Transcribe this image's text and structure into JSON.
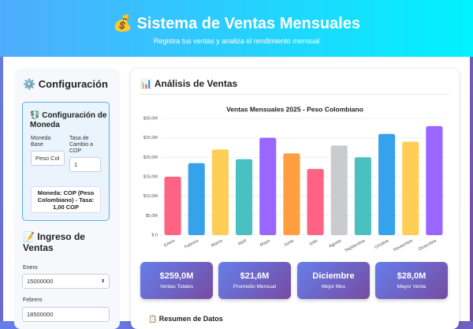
{
  "header": {
    "title": "💰 Sistema de Ventas Mensuales",
    "subtitle": "Registra tus ventas y analiza el rendimiento mensual"
  },
  "sidebar": {
    "config_title": "⚙️ Configuración",
    "currency": {
      "title": "💱 Configuración de Moneda",
      "base_label": "Moneda Base",
      "base_value": "Peso Col",
      "rate_label": "Tasa de Cambio a COP",
      "rate_value": "1",
      "info": "Moneda: COP (Peso Colombiano) - Tasa: 1,00 COP"
    },
    "sales_title": "📝 Ingreso de Ventas"
  },
  "analysis": {
    "title": "📊 Análisis de Ventas",
    "stats": [
      {
        "value": "$259,0M",
        "label": "Ventas Totales"
      },
      {
        "value": "$21,6M",
        "label": "Promedio Mensual"
      },
      {
        "value": "Diciembre",
        "label": "Mejor Mes"
      },
      {
        "value": "$28,0M",
        "label": "Mayor Venta"
      }
    ],
    "summary_title": "📋 Resumen de Datos"
  },
  "chart_data": {
    "type": "bar",
    "title": "Ventas Mensuales 2025 - Peso Colombiano",
    "categories": [
      "Enero",
      "Febrero",
      "Marzo",
      "Abril",
      "Mayo",
      "Junio",
      "Julio",
      "Agosto",
      "Septiembre",
      "Octubre",
      "Noviembre",
      "Diciembre"
    ],
    "values": [
      15000000,
      18500000,
      22000000,
      19500000,
      25000000,
      21000000,
      17000000,
      23000000,
      20000000,
      26000000,
      24000000,
      28000000
    ],
    "colors": [
      "#ff6384",
      "#36a2eb",
      "#ffce56",
      "#4bc0c0",
      "#9966ff",
      "#ff9f40",
      "#ff6384",
      "#c9cbcf",
      "#4bc0c0",
      "#36a2eb",
      "#ffce56",
      "#9966ff"
    ],
    "ylim": [
      0,
      30000000
    ],
    "yticks": [
      {
        "value": 0,
        "label": "$ 0"
      },
      {
        "value": 5000000,
        "label": "$5,0M"
      },
      {
        "value": 10000000,
        "label": "$10,0M"
      },
      {
        "value": 15000000,
        "label": "$15,0M"
      },
      {
        "value": 20000000,
        "label": "$20,0M"
      },
      {
        "value": 25000000,
        "label": "$25,0M"
      },
      {
        "value": 30000000,
        "label": "$30,0M"
      }
    ],
    "grid": true
  }
}
